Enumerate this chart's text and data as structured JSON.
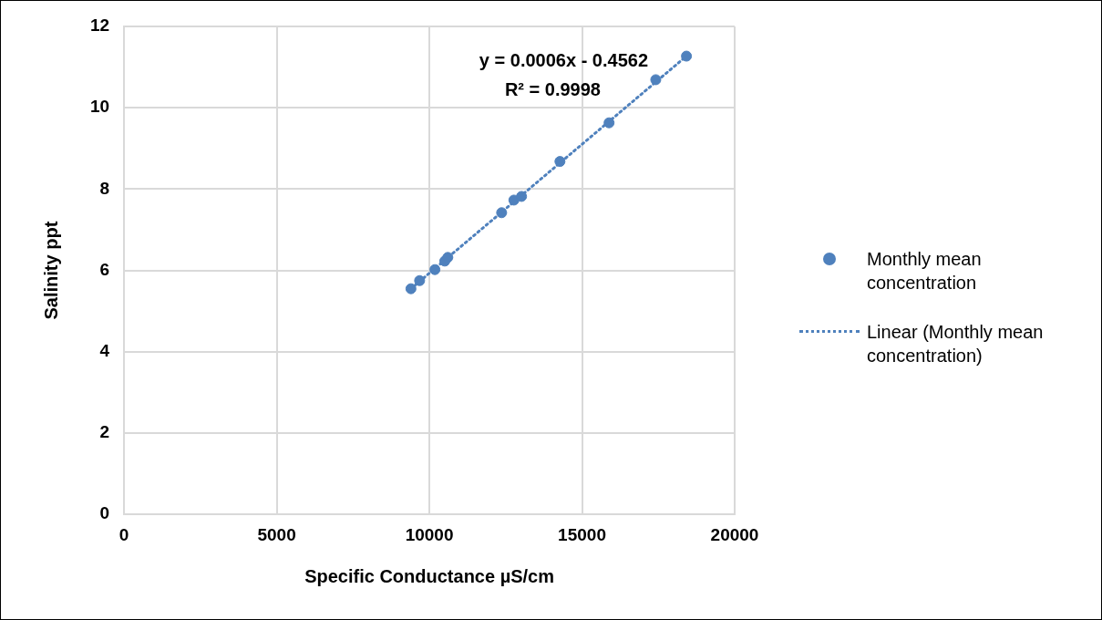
{
  "chart_data": {
    "type": "scatter",
    "xlabel": "Specific Conductance µS/cm",
    "ylabel": "Salinity ppt",
    "xlim": [
      0,
      20000
    ],
    "xticks": [
      0,
      5000,
      10000,
      15000,
      20000
    ],
    "ylim": [
      0,
      12
    ],
    "yticks": [
      0,
      2,
      4,
      6,
      8,
      10,
      12
    ],
    "grid": true,
    "legend": "right",
    "marker": "circle",
    "annotations": [
      "y = 0.0006x - 0.4562",
      "R² = 0.9998"
    ],
    "series": [
      {
        "name": "Monthly mean concentration",
        "color": "#4f81bd",
        "x": [
          9396,
          9680,
          10181,
          10504,
          10604,
          12367,
          12768,
          13019,
          14277,
          15886,
          17416,
          18421
        ],
        "values": [
          5.55,
          5.75,
          6.02,
          6.23,
          6.32,
          7.42,
          7.73,
          7.82,
          8.68,
          9.63,
          10.69,
          11.27
        ]
      },
      {
        "name": "Linear (Monthly mean concentration)",
        "type": "line",
        "line_style": "dotted",
        "marker": "none",
        "color": "#4f81bd",
        "x": [
          9396,
          18421
        ],
        "values": [
          5.55,
          11.27
        ]
      }
    ]
  }
}
